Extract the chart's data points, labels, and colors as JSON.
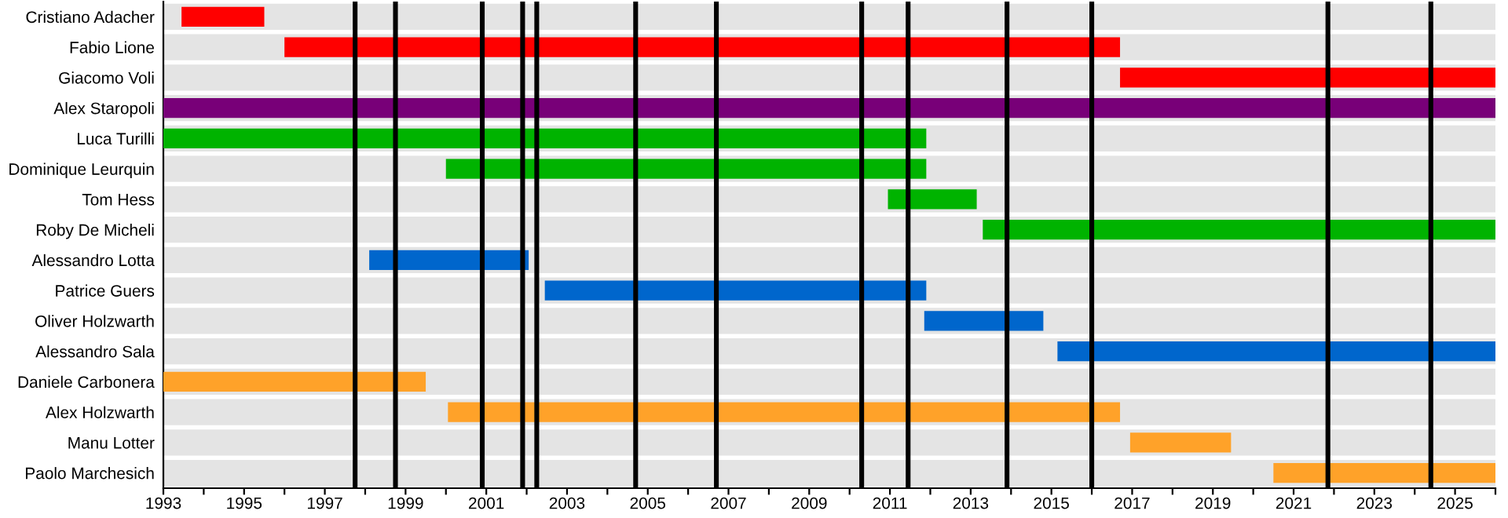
{
  "chart_data": {
    "type": "bar",
    "orientation": "horizontal",
    "categories": [
      "Cristiano Adacher",
      "Fabio Lione",
      "Giacomo Voli",
      "Alex Staropoli",
      "Luca Turilli",
      "Dominique Leurquin",
      "Tom Hess",
      "Roby De Micheli",
      "Alessandro Lotta",
      "Patrice Guers",
      "Oliver Holzwarth",
      "Alessandro Sala",
      "Daniele Carbonera",
      "Alex Holzwarth",
      "Manu Lotter",
      "Paolo Marchesich"
    ],
    "base": [
      1993.45,
      1996.0,
      2016.7,
      1993.0,
      1993.0,
      2000.0,
      2010.95,
      2013.3,
      1998.1,
      2002.45,
      2011.85,
      2015.15,
      1993.0,
      2000.05,
      2016.95,
      2020.5
    ],
    "values": [
      2.05,
      20.7,
      9.3,
      33.0,
      18.9,
      11.9,
      2.2,
      12.7,
      3.95,
      9.45,
      2.95,
      10.85,
      6.5,
      16.65,
      2.5,
      5.5
    ],
    "colors": [
      "#ff0000",
      "#ff0000",
      "#ff0000",
      "#780078",
      "#00b300",
      "#00b300",
      "#00b300",
      "#00b300",
      "#0066cc",
      "#0066cc",
      "#0066cc",
      "#0066cc",
      "#ffa229",
      "#ffa229",
      "#ffa229",
      "#ffa229"
    ],
    "xlim": [
      1993,
      2026
    ],
    "xticks": [
      1993,
      {
        "value": 1994,
        "label": null
      },
      1995,
      {
        "value": 1996,
        "label": null
      },
      1997,
      {
        "value": 1998,
        "label": null
      },
      1999,
      {
        "value": 2000,
        "label": null
      },
      2001,
      {
        "value": 2002,
        "label": null
      },
      2003,
      {
        "value": 2004,
        "label": null
      },
      2005,
      {
        "value": 2006,
        "label": null
      },
      2007,
      {
        "value": 2008,
        "label": null
      },
      2009,
      {
        "value": 2010,
        "label": null
      },
      2011,
      {
        "value": 2012,
        "label": null
      },
      2013,
      {
        "value": 2014,
        "label": null
      },
      2015,
      {
        "value": 2016,
        "label": null
      },
      2017,
      {
        "value": 2018,
        "label": null
      },
      2019,
      {
        "value": 2020,
        "label": null
      },
      2021,
      {
        "value": 2022,
        "label": null
      },
      2023,
      {
        "value": 2024,
        "label": null
      },
      2025,
      {
        "value": 2026,
        "label": null
      }
    ],
    "grid": "y",
    "ref_lines": [
      {
        "axis": "x",
        "value": 1997.75,
        "color": "#000000"
      },
      {
        "axis": "x",
        "value": 1998.75,
        "color": "#000000"
      },
      {
        "axis": "x",
        "value": 2000.9,
        "color": "#000000"
      },
      {
        "axis": "x",
        "value": 2001.9,
        "color": "#000000"
      },
      {
        "axis": "x",
        "value": 2002.25,
        "color": "#000000"
      },
      {
        "axis": "x",
        "value": 2004.7,
        "color": "#000000"
      },
      {
        "axis": "x",
        "value": 2006.7,
        "color": "#000000"
      },
      {
        "axis": "x",
        "value": 2010.3,
        "color": "#000000"
      },
      {
        "axis": "x",
        "value": 2011.45,
        "color": "#000000"
      },
      {
        "axis": "x",
        "value": 2013.9,
        "color": "#000000"
      },
      {
        "axis": "x",
        "value": 2016.0,
        "color": "#000000"
      },
      {
        "axis": "x",
        "value": 2021.85,
        "color": "#000000"
      },
      {
        "axis": "x",
        "value": 2024.4,
        "color": "#000000"
      }
    ]
  }
}
